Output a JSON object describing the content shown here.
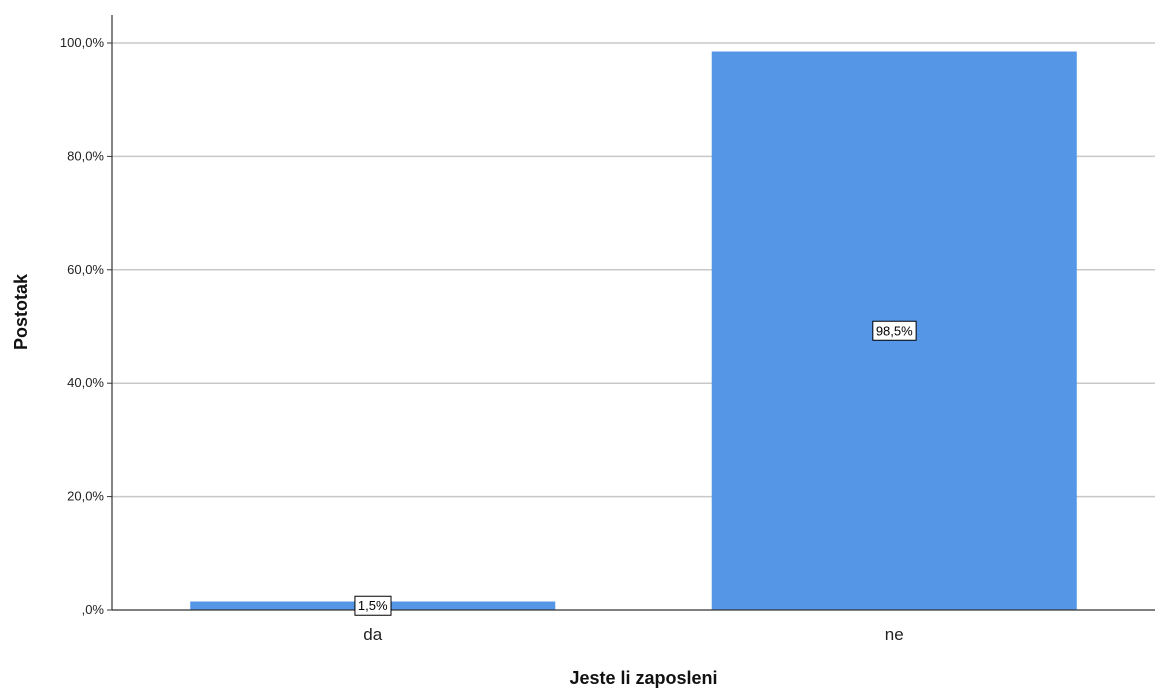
{
  "chart_data": {
    "type": "bar",
    "categories": [
      "da",
      "ne"
    ],
    "values": [
      1.5,
      98.5
    ],
    "data_labels": [
      "1,5%",
      "98,5%"
    ],
    "title": "",
    "xlabel": "Jeste li zaposleni",
    "ylabel": "Postotak",
    "ylim": [
      0,
      100
    ],
    "yticks": [
      0,
      20,
      40,
      60,
      80,
      100
    ],
    "ytick_labels": [
      ",0%",
      "20,0%",
      "40,0%",
      "60,0%",
      "80,0%",
      "100,0%"
    ],
    "grid": true,
    "legend": "none",
    "colors": {
      "bar": "#5596e6",
      "grid": "#c8c8c8",
      "axis": "#333333"
    }
  }
}
